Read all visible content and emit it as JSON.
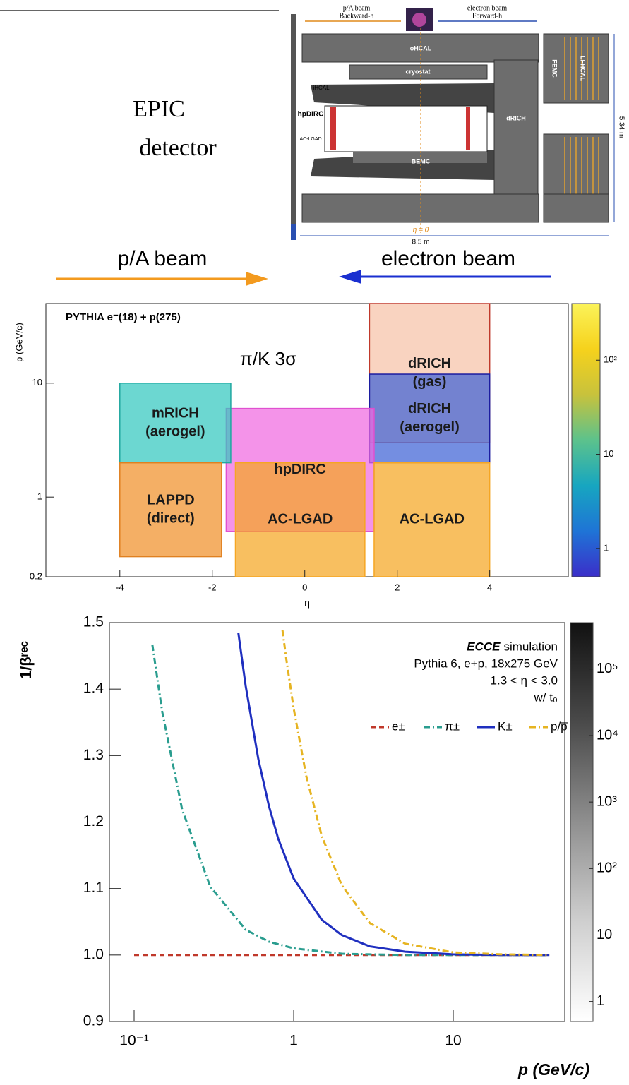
{
  "diagram": {
    "title_lines": [
      "EPIC",
      "detector"
    ],
    "top_left": [
      "p/A beam",
      "Backward-h"
    ],
    "top_right": [
      "electron beam",
      "Forward-h"
    ],
    "parts": {
      "ohcal": "oHCAL",
      "cryostat": "cryostat",
      "ihcal": "iHCAL",
      "hpdirc": "hpDIRC",
      "aclgad": "AC-LGAD",
      "drich": "dRICH",
      "bemc": "BEMC",
      "femc": "FEMC",
      "lfhcal": "LFHCAL"
    },
    "eta_zero": "η = 0",
    "length": "8.5 m",
    "height": "5.34 m",
    "beam_left": "p/A beam",
    "beam_right": "electron beam"
  },
  "chart_data": [
    {
      "type": "region",
      "title": "PYTHIA e⁻(18) + p(275)",
      "annotation": "π/K 3σ",
      "x_label": "η",
      "y_label": "p (GeV/c)",
      "xlim": [
        -5.6,
        5.7
      ],
      "xticks": [
        -4,
        -2,
        0,
        2,
        4
      ],
      "ylim": [
        0.2,
        50
      ],
      "yticks": [
        0.2,
        1,
        10
      ],
      "y_log": true,
      "colorbar": {
        "lim": [
          0.5,
          400
        ],
        "log": true,
        "ticks": [
          1,
          10,
          {
            "value": 100,
            "label": "10²"
          }
        ],
        "colors": [
          "#3b2ec9",
          "#1f74d6",
          "#17a6c0",
          "#5cc28c",
          "#c8c23c",
          "#f6d21c",
          "#fbf35a"
        ]
      },
      "regions": [
        {
          "label": [
            "dRICH",
            "(gas)"
          ],
          "x": [
            1.4,
            4
          ],
          "y": [
            3,
            50
          ],
          "color": "#f7c2a8",
          "edge": "#c0392b"
        },
        {
          "label": [
            "dRICH",
            "(aerogel)"
          ],
          "x": [
            1.4,
            4
          ],
          "y": [
            2,
            12
          ],
          "color": "#3f63d6",
          "edge": "#1c1ca0"
        },
        {
          "label": [
            "hpDIRC"
          ],
          "x": [
            -1.7,
            1.5
          ],
          "y": [
            0.5,
            6
          ],
          "color": "#f06ae0",
          "edge": "#e050d0"
        },
        {
          "label": [
            "mRICH",
            "(aerogel)"
          ],
          "x": [
            -4,
            -1.6
          ],
          "y": [
            2,
            10
          ],
          "color": "#33c8bf",
          "edge": "#20a8a0"
        },
        {
          "label": [
            "LAPPD",
            "(direct)"
          ],
          "x": [
            -4,
            -1.8
          ],
          "y": [
            0.3,
            2
          ],
          "color": "#f0902a",
          "edge": "#e08020"
        },
        {
          "label": [
            "AC-LGAD"
          ],
          "x": [
            -1.5,
            1.3
          ],
          "y": [
            0.2,
            2
          ],
          "color": "#f5a623",
          "edge": "#f5a623"
        },
        {
          "label": [
            "AC-LGAD"
          ],
          "x": [
            1.5,
            4
          ],
          "y": [
            0.2,
            2
          ],
          "color": "#f5a623",
          "edge": "#f5a623"
        }
      ]
    },
    {
      "type": "line",
      "experiment": "ECCE",
      "annotations": [
        "simulation",
        "Pythia 6, e+p, 18x275 GeV",
        "1.3 < η < 3.0",
        "w/ t₀"
      ],
      "x_label": "p (GeV/c)",
      "y_label": "1/βʳᵉᶜ",
      "xlim": [
        0.07,
        50
      ],
      "x_log": true,
      "xticks": [
        {
          "value": 0.1,
          "label": "10⁻¹"
        },
        1,
        10
      ],
      "ylim": [
        0.9,
        1.5
      ],
      "yticks": [
        0.9,
        {
          "value": 1,
          "label": "1.0"
        },
        1.1,
        1.2,
        1.3,
        1.4,
        1.5
      ],
      "colorbar": {
        "lim": [
          0.5,
          500000
        ],
        "log": true,
        "ticks": [
          1,
          10,
          {
            "value": 100,
            "label": "10²"
          },
          {
            "value": 1000,
            "label": "10³"
          },
          {
            "value": 10000,
            "label": "10⁴"
          },
          {
            "value": 100000,
            "label": "10⁵"
          }
        ],
        "colors": [
          "#ffffff",
          "#cfcfcf",
          "#8f8f8f",
          "#4a4a4a",
          "#111111"
        ]
      },
      "series": [
        {
          "name": "e±",
          "color": "#c0392b",
          "dash": "7 5",
          "x": [
            0.1,
            1,
            10,
            40
          ],
          "values": [
            1,
            1,
            1,
            1
          ]
        },
        {
          "name": "π±",
          "color": "#2a9d8f",
          "dash": "9 4 2 4",
          "x": [
            0.13,
            0.15,
            0.2,
            0.3,
            0.5,
            0.7,
            1,
            2,
            3,
            5,
            10,
            20,
            40
          ],
          "values": [
            1.467,
            1.366,
            1.219,
            1.103,
            1.038,
            1.02,
            1.01,
            1.002,
            1.001,
            1,
            1,
            1,
            1
          ]
        },
        {
          "name": "K±",
          "color": "#1f2fbf",
          "dash": "none",
          "x": [
            0.45,
            0.5,
            0.6,
            0.7,
            0.8,
            1,
            1.5,
            2,
            3,
            5,
            10,
            20,
            40
          ],
          "values": [
            1.485,
            1.405,
            1.295,
            1.224,
            1.175,
            1.115,
            1.053,
            1.03,
            1.013,
            1.005,
            1.001,
            1,
            1
          ]
        },
        {
          "name": "p/p̅",
          "color": "#e6b422",
          "dash": "9 4 2 4",
          "x": [
            0.85,
            0.9,
            1,
            1.2,
            1.5,
            2,
            3,
            5,
            10,
            20,
            40
          ],
          "values": [
            1.489,
            1.444,
            1.371,
            1.269,
            1.179,
            1.105,
            1.048,
            1.017,
            1.004,
            1.001,
            1
          ]
        }
      ]
    }
  ]
}
